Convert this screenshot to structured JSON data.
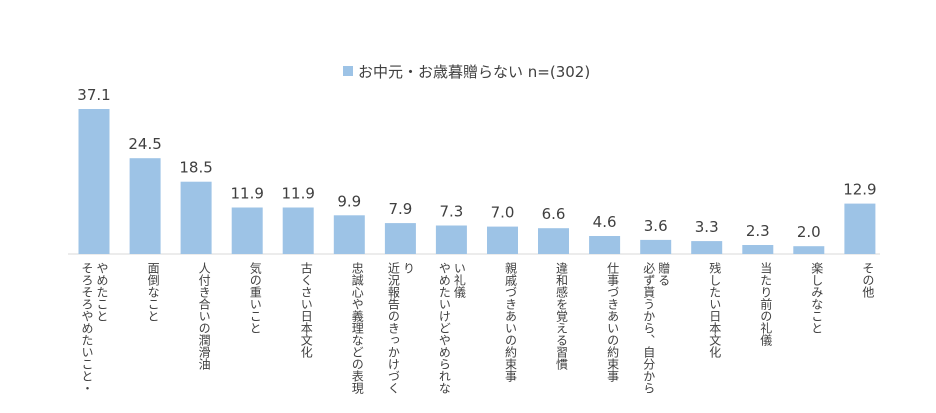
{
  "chart_data": {
    "type": "bar",
    "series": [
      {
        "name": "お中元・お歳暮贈らない n=(302)",
        "color": "#9dc3e6",
        "values": [
          37.1,
          24.5,
          18.5,
          11.9,
          11.9,
          9.9,
          7.9,
          7.3,
          7.0,
          6.6,
          4.6,
          3.6,
          3.3,
          2.3,
          2.0,
          12.9
        ]
      }
    ],
    "categories": [
      "そろそろやめたいこと・やめたこと",
      "面倒なこと",
      "人付き合いの潤滑油",
      "気の重いこと",
      "古くさい日本文化",
      "忠誠心や義理などの表現",
      "近況報告のきっかけづくり",
      "やめたいけどやめられない礼儀",
      "親戚づきあいの約束事",
      "違和感を覚える習慣",
      "仕事づきあいの約束事",
      "必ず貰うから、自分から贈る",
      "残したい日本文化",
      "当たり前の礼儀",
      "楽しみなこと",
      "その他"
    ],
    "category_lines": [
      [
        "そろそろやめたいこと・",
        "やめたこと"
      ],
      [
        "面倒なこと"
      ],
      [
        "人付き合いの潤滑油"
      ],
      [
        "気の重いこと"
      ],
      [
        "古くさい日本文化"
      ],
      [
        "忠誠心や義理などの表現"
      ],
      [
        "近況報告のきっかけづく",
        "り"
      ],
      [
        "やめたいけどやめられな",
        "い礼儀"
      ],
      [
        "親戚づきあいの約束事"
      ],
      [
        "違和感を覚える習慣"
      ],
      [
        "仕事づきあいの約束事"
      ],
      [
        "必ず貰うから、自分から",
        "贈る"
      ],
      [
        "残したい日本文化"
      ],
      [
        "当たり前の礼儀"
      ],
      [
        "楽しみなこと"
      ],
      [
        "その他"
      ]
    ],
    "value_labels": [
      "37.1",
      "24.5",
      "18.5",
      "11.9",
      "11.9",
      "9.9",
      "7.9",
      "7.3",
      "7.0",
      "6.6",
      "4.6",
      "3.6",
      "3.3",
      "2.3",
      "2.0",
      "12.9"
    ],
    "legend_position": "top-center",
    "grid": false,
    "ylim": [
      0,
      37.1
    ]
  }
}
